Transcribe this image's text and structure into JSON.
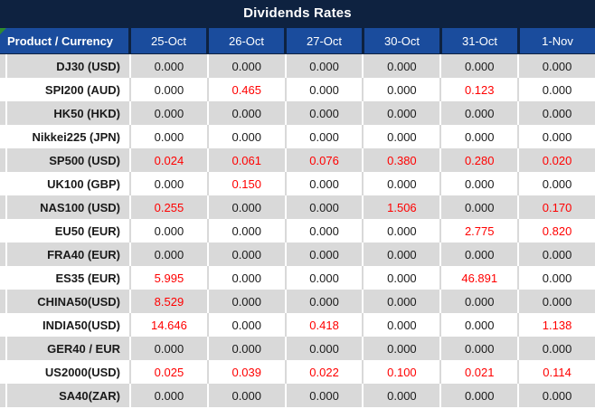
{
  "title": "Dividends Rates",
  "columns": [
    "Product / Currency",
    "25-Oct",
    "26-Oct",
    "27-Oct",
    "30-Oct",
    "31-Oct",
    "1-Nov"
  ],
  "zero_display": "0.000",
  "rows": [
    {
      "product": "DJ30 (USD)",
      "values": [
        "0.000",
        "0.000",
        "0.000",
        "0.000",
        "0.000",
        "0.000"
      ]
    },
    {
      "product": "SPI200 (AUD)",
      "values": [
        "0.000",
        "0.465",
        "0.000",
        "0.000",
        "0.123",
        "0.000"
      ]
    },
    {
      "product": "HK50 (HKD)",
      "values": [
        "0.000",
        "0.000",
        "0.000",
        "0.000",
        "0.000",
        "0.000"
      ]
    },
    {
      "product": "Nikkei225 (JPN)",
      "values": [
        "0.000",
        "0.000",
        "0.000",
        "0.000",
        "0.000",
        "0.000"
      ]
    },
    {
      "product": "SP500 (USD)",
      "values": [
        "0.024",
        "0.061",
        "0.076",
        "0.380",
        "0.280",
        "0.020"
      ]
    },
    {
      "product": "UK100 (GBP)",
      "values": [
        "0.000",
        "0.150",
        "0.000",
        "0.000",
        "0.000",
        "0.000"
      ]
    },
    {
      "product": "NAS100 (USD)",
      "values": [
        "0.255",
        "0.000",
        "0.000",
        "1.506",
        "0.000",
        "0.170"
      ]
    },
    {
      "product": "EU50 (EUR)",
      "values": [
        "0.000",
        "0.000",
        "0.000",
        "0.000",
        "2.775",
        "0.820"
      ]
    },
    {
      "product": "FRA40 (EUR)",
      "values": [
        "0.000",
        "0.000",
        "0.000",
        "0.000",
        "0.000",
        "0.000"
      ]
    },
    {
      "product": "ES35 (EUR)",
      "values": [
        "5.995",
        "0.000",
        "0.000",
        "0.000",
        "46.891",
        "0.000"
      ]
    },
    {
      "product": "CHINA50(USD)",
      "values": [
        "8.529",
        "0.000",
        "0.000",
        "0.000",
        "0.000",
        "0.000"
      ]
    },
    {
      "product": "INDIA50(USD)",
      "values": [
        "14.646",
        "0.000",
        "0.418",
        "0.000",
        "0.000",
        "1.138"
      ]
    },
    {
      "product": "GER40 / EUR",
      "values": [
        "0.000",
        "0.000",
        "0.000",
        "0.000",
        "0.000",
        "0.000"
      ]
    },
    {
      "product": "US2000(USD)",
      "values": [
        "0.025",
        "0.039",
        "0.022",
        "0.100",
        "0.021",
        "0.114"
      ]
    },
    {
      "product": "SA40(ZAR)",
      "values": [
        "0.000",
        "0.000",
        "0.000",
        "0.000",
        "0.000",
        "0.000"
      ]
    }
  ],
  "colors": {
    "navy": "#0E2240",
    "header_blue": "#1A4C9D",
    "row_gray": "#D9D9D9",
    "row_white": "#FFFFFF",
    "value_red": "#FF0000",
    "text_dark": "#1A1A1A",
    "corner_green": "#2E8B2E"
  }
}
